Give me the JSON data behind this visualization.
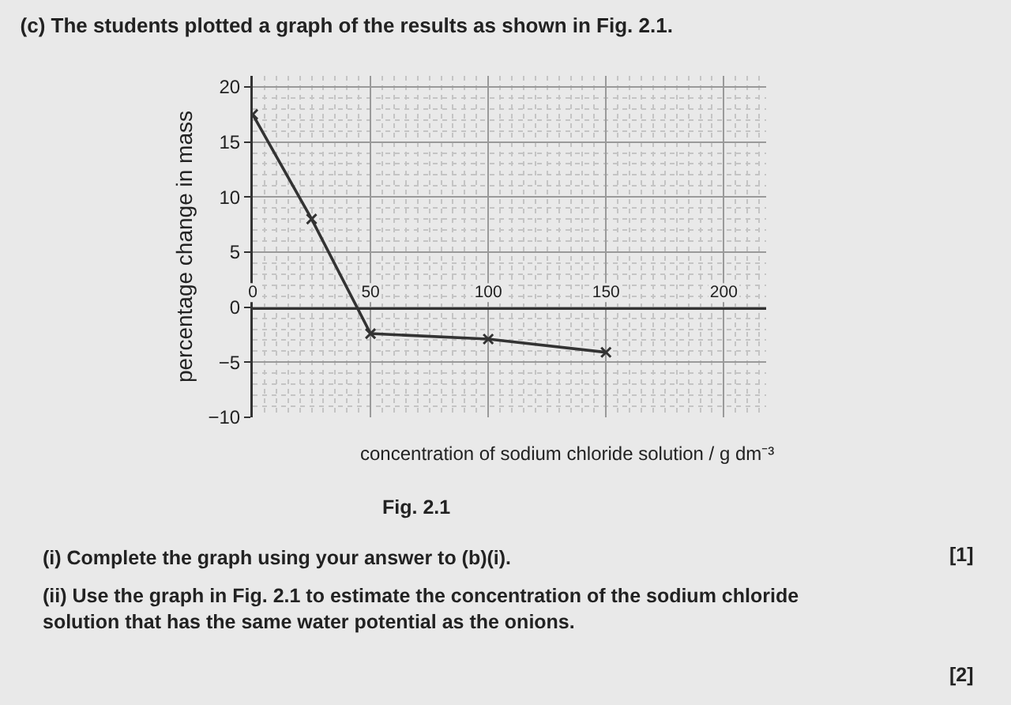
{
  "chart_data": {
    "type": "line",
    "title": "(c) The students plotted a graph of the results as shown in Fig. 2.1.",
    "xlabel": "concentration of sodium chloride solution / g dm⁻³",
    "ylabel": "percentage change in mass",
    "x": [
      0,
      25,
      50,
      100,
      150
    ],
    "values": [
      17.5,
      8,
      -2.4,
      -2.9,
      -4.1
    ],
    "color": "#333333",
    "marker": "cross",
    "line_style": "solid",
    "xlim": [
      0,
      218
    ],
    "xticks": [
      0,
      50,
      100,
      150,
      200
    ],
    "ylim": [
      -10,
      21
    ],
    "yticks": [
      -10,
      -5,
      0,
      5,
      10,
      15,
      20
    ],
    "grid": true,
    "annotations": [
      "Fig. 2.1",
      "(i) Complete the graph using your answer to (b)(i).",
      "[1]",
      "(ii) Use the graph in Fig. 2.1 to estimate the concentration of the sodium chloride solution that has the same water potential as the onions.",
      "[2]"
    ]
  }
}
